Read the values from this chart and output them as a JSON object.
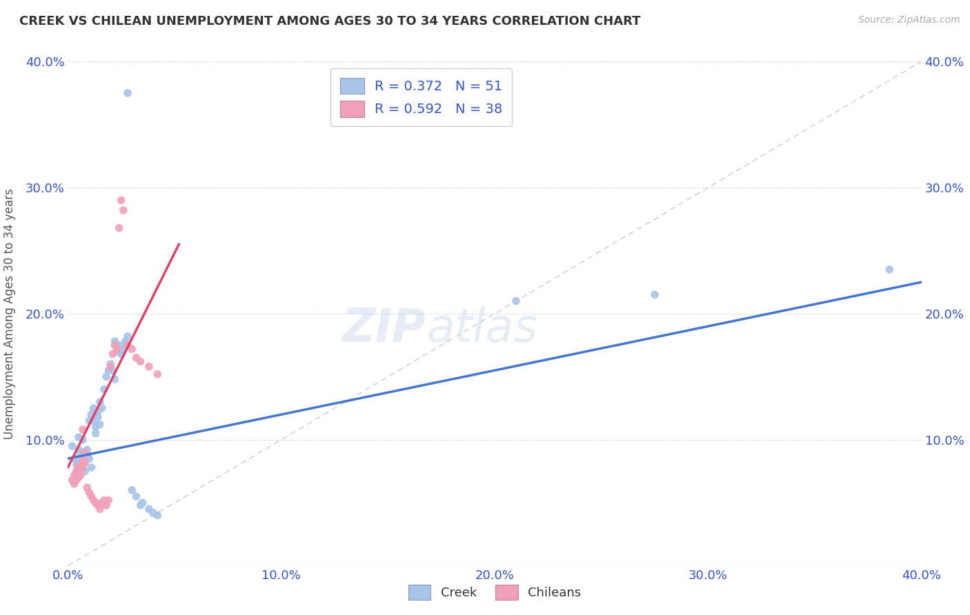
{
  "title": "CREEK VS CHILEAN UNEMPLOYMENT AMONG AGES 30 TO 34 YEARS CORRELATION CHART",
  "source": "Source: ZipAtlas.com",
  "ylabel": "Unemployment Among Ages 30 to 34 years",
  "xlim": [
    0.0,
    0.4
  ],
  "ylim": [
    0.0,
    0.4
  ],
  "xtick_labels": [
    "0.0%",
    "",
    "",
    "",
    "10.0%",
    "",
    "",
    "",
    "",
    "20.0%",
    "",
    "",
    "",
    "",
    "30.0%",
    "",
    "",
    "",
    "",
    "40.0%"
  ],
  "ytick_labels": [
    "",
    "10.0%",
    "20.0%",
    "30.0%",
    "40.0%"
  ],
  "ytick_vals": [
    0.0,
    0.1,
    0.2,
    0.3,
    0.4
  ],
  "right_ytick_labels": [
    "",
    "10.0%",
    "20.0%",
    "30.0%",
    "40.0%"
  ],
  "right_ytick_vals": [
    0.0,
    0.1,
    0.2,
    0.3,
    0.4
  ],
  "creek_color": "#a8c4e8",
  "chilean_color": "#f0a0b8",
  "creek_R": 0.372,
  "creek_N": 51,
  "chilean_R": 0.592,
  "chilean_N": 38,
  "creek_line_color": "#4477cc",
  "chilean_line_color": "#dd4466",
  "diagonal_color": "#cccccc",
  "legend_text_color": "#3355cc",
  "watermark": "ZIPatlas",
  "creek_line": [
    0.0,
    0.085,
    0.4,
    0.225
  ],
  "chilean_line": [
    0.0,
    0.078,
    0.052,
    0.255
  ],
  "creek_points": [
    [
      0.002,
      0.095
    ],
    [
      0.003,
      0.085
    ],
    [
      0.004,
      0.08
    ],
    [
      0.005,
      0.092
    ],
    [
      0.005,
      0.082
    ],
    [
      0.005,
      0.102
    ],
    [
      0.006,
      0.088
    ],
    [
      0.006,
      0.078
    ],
    [
      0.007,
      0.09
    ],
    [
      0.007,
      0.1
    ],
    [
      0.008,
      0.082
    ],
    [
      0.008,
      0.075
    ],
    [
      0.009,
      0.088
    ],
    [
      0.009,
      0.092
    ],
    [
      0.01,
      0.085
    ],
    [
      0.01,
      0.115
    ],
    [
      0.011,
      0.078
    ],
    [
      0.011,
      0.12
    ],
    [
      0.012,
      0.125
    ],
    [
      0.012,
      0.115
    ],
    [
      0.013,
      0.11
    ],
    [
      0.013,
      0.105
    ],
    [
      0.014,
      0.118
    ],
    [
      0.014,
      0.122
    ],
    [
      0.015,
      0.112
    ],
    [
      0.015,
      0.13
    ],
    [
      0.016,
      0.125
    ],
    [
      0.017,
      0.14
    ],
    [
      0.018,
      0.15
    ],
    [
      0.019,
      0.155
    ],
    [
      0.02,
      0.16
    ],
    [
      0.021,
      0.155
    ],
    [
      0.022,
      0.148
    ],
    [
      0.022,
      0.178
    ],
    [
      0.023,
      0.17
    ],
    [
      0.024,
      0.175
    ],
    [
      0.025,
      0.168
    ],
    [
      0.026,
      0.172
    ],
    [
      0.027,
      0.178
    ],
    [
      0.028,
      0.182
    ],
    [
      0.03,
      0.06
    ],
    [
      0.032,
      0.055
    ],
    [
      0.034,
      0.048
    ],
    [
      0.035,
      0.05
    ],
    [
      0.038,
      0.045
    ],
    [
      0.04,
      0.042
    ],
    [
      0.042,
      0.04
    ],
    [
      0.028,
      0.375
    ],
    [
      0.21,
      0.21
    ],
    [
      0.275,
      0.215
    ],
    [
      0.385,
      0.235
    ]
  ],
  "chilean_points": [
    [
      0.002,
      0.068
    ],
    [
      0.003,
      0.072
    ],
    [
      0.003,
      0.065
    ],
    [
      0.004,
      0.075
    ],
    [
      0.004,
      0.068
    ],
    [
      0.005,
      0.078
    ],
    [
      0.005,
      0.07
    ],
    [
      0.006,
      0.08
    ],
    [
      0.006,
      0.072
    ],
    [
      0.007,
      0.085
    ],
    [
      0.007,
      0.078
    ],
    [
      0.007,
      0.108
    ],
    [
      0.008,
      0.09
    ],
    [
      0.008,
      0.082
    ],
    [
      0.009,
      0.062
    ],
    [
      0.01,
      0.058
    ],
    [
      0.011,
      0.055
    ],
    [
      0.012,
      0.052
    ],
    [
      0.013,
      0.05
    ],
    [
      0.014,
      0.048
    ],
    [
      0.015,
      0.045
    ],
    [
      0.016,
      0.05
    ],
    [
      0.017,
      0.052
    ],
    [
      0.018,
      0.048
    ],
    [
      0.019,
      0.052
    ],
    [
      0.02,
      0.158
    ],
    [
      0.021,
      0.168
    ],
    [
      0.022,
      0.175
    ],
    [
      0.023,
      0.172
    ],
    [
      0.024,
      0.268
    ],
    [
      0.025,
      0.29
    ],
    [
      0.026,
      0.282
    ],
    [
      0.028,
      0.175
    ],
    [
      0.03,
      0.172
    ],
    [
      0.032,
      0.165
    ],
    [
      0.034,
      0.162
    ],
    [
      0.038,
      0.158
    ],
    [
      0.042,
      0.152
    ]
  ]
}
